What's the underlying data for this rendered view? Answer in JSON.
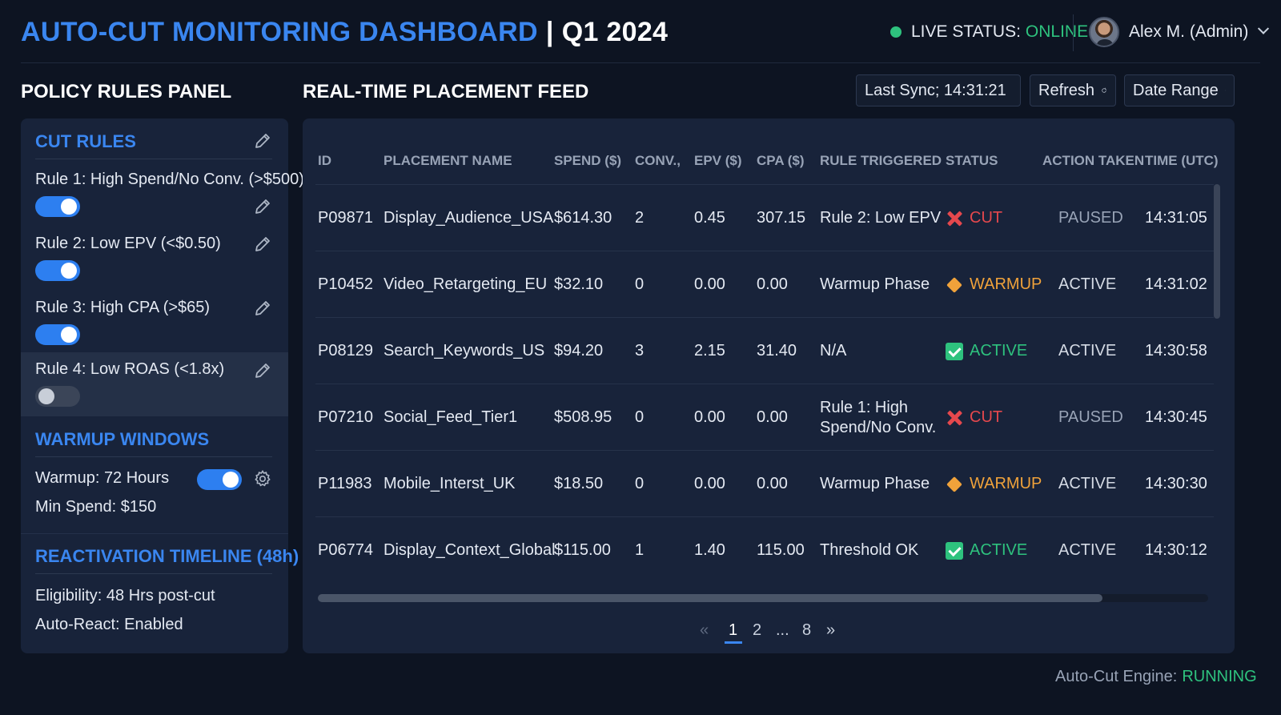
{
  "header": {
    "title_main": "AUTO-CUT MONITORING DASHBOARD",
    "title_sep": "|",
    "title_period": "Q1 2024",
    "live_status_label": "LIVE STATUS:",
    "live_status_value": "ONLINE",
    "user_name": "Alex M. (Admin)"
  },
  "left_panel": {
    "title": "POLICY RULES PANEL",
    "cut_rules": {
      "heading": "CUT RULES",
      "rules": [
        {
          "label": "Rule 1: High Spend/No Conv. (>$500)",
          "enabled": true
        },
        {
          "label": "Rule 2: Low EPV (<$0.50)",
          "enabled": true
        },
        {
          "label": "Rule 3: High CPA (>$65)",
          "enabled": true
        },
        {
          "label": "Rule 4: Low ROAS (<1.8x)",
          "enabled": false
        }
      ]
    },
    "warmup": {
      "heading": "WARMUP WINDOWS",
      "duration": "Warmup: 72 Hours",
      "min_spend": "Min Spend: $150",
      "enabled": true
    },
    "reactivation": {
      "heading": "REACTIVATION TIMELINE (48h)",
      "eligibility": "Eligibility: 48 Hrs post-cut",
      "auto_react": "Auto-React: Enabled"
    }
  },
  "feed": {
    "title": "REAL-TIME PLACEMENT FEED",
    "last_sync": "Last Sync; 14:31:21",
    "refresh_label": "Refresh",
    "date_range_label": "Date Range",
    "columns": [
      "ID",
      "PLACEMENT NAME",
      "SPEND ($)",
      "CONV.,",
      "EPV ($)",
      "CPA ($)",
      "RULE TRIGGERED",
      "STATUS",
      "ACTION TAKEN",
      "TIME (UTC)"
    ],
    "rows": [
      {
        "id": "P09871",
        "name": "Display_Audience_USA",
        "spend": "$614.30",
        "conv": "2",
        "epv": "0.45",
        "cpa": "307.15",
        "rule": "Rule 2: Low EPV",
        "status": "CUT",
        "action": "PAUSED",
        "time": "14:31:05"
      },
      {
        "id": "P10452",
        "name": "Video_Retargeting_EU",
        "spend": "$32.10",
        "conv": "0",
        "epv": "0.00",
        "cpa": "0.00",
        "rule": "Warmup Phase",
        "status": "WARMUP",
        "action": "ACTIVE",
        "time": "14:31:02"
      },
      {
        "id": "P08129",
        "name": "Search_Keywords_US",
        "spend": "$94.20",
        "conv": "3",
        "epv": "2.15",
        "cpa": "31.40",
        "rule": "N/A",
        "status": "ACTIVE",
        "action": "ACTIVE",
        "time": "14:30:58"
      },
      {
        "id": "P07210",
        "name": "Social_Feed_Tier1",
        "spend": "$508.95",
        "conv": "0",
        "epv": "0.00",
        "cpa": "0.00",
        "rule": "Rule 1: High Spend/No Conv.",
        "status": "CUT",
        "action": "PAUSED",
        "time": "14:30:45"
      },
      {
        "id": "P11983",
        "name": "Mobile_Interst_UK",
        "spend": "$18.50",
        "conv": "0",
        "epv": "0.00",
        "cpa": "0.00",
        "rule": "Warmup Phase",
        "status": "WARMUP",
        "action": "ACTIVE",
        "time": "14:30:30"
      },
      {
        "id": "P06774",
        "name": "Display_Context_Global",
        "spend": "$115.00",
        "conv": "1",
        "epv": "1.40",
        "cpa": "115.00",
        "rule": "Threshold OK",
        "status": "ACTIVE",
        "action": "ACTIVE",
        "time": "14:30:12"
      }
    ],
    "pagination": {
      "prev": "«",
      "pages": [
        "1",
        "2",
        "...",
        "8"
      ],
      "current": "1",
      "next": "»"
    }
  },
  "footer": {
    "engine_label": "Auto-Cut Engine:",
    "engine_value": "RUNNING"
  },
  "colors": {
    "background": "#0d1422",
    "panel": "#18233a",
    "accent": "#3a86f0",
    "online": "#2ec27e",
    "cut": "#e5484d",
    "warmup": "#f0a23a"
  }
}
